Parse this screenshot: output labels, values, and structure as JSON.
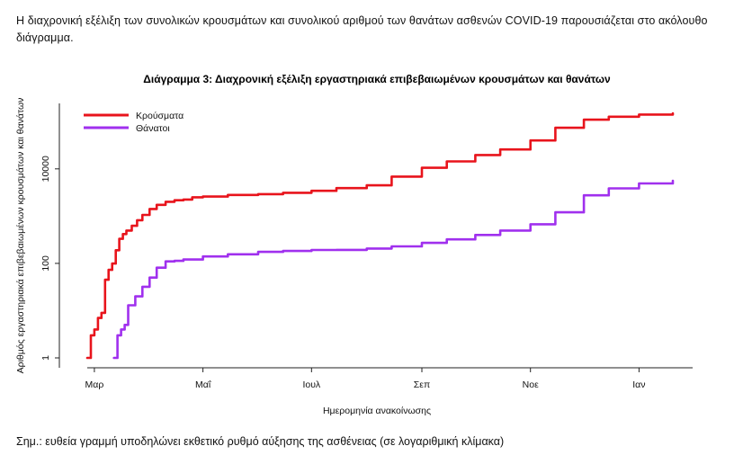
{
  "intro_text": "Η διαχρονική εξέλιξη των συνολικών κρουσμάτων και συνολικού αριθμού των θανάτων ασθενών COVID-19 παρουσιάζεται στο ακόλουθο διάγραμμα.",
  "footnote": "Σημ.: ευθεία γραμμή υποδηλώνει εκθετικό ρυθμό αύξησης της ασθένειας (σε λογαριθμική κλίμακα)",
  "chart_data": {
    "type": "line",
    "title": "Διάγραμμα 3: Διαχρονική εξέλιξη εργαστηριακά επιβεβαιωμένων κρουσμάτων και θανάτων",
    "xlabel": "Ημερομηνία ανακοίνωσης",
    "ylabel": "Αριθμός εργαστηριακά επιβεβαιωμένων κρουσμάτων και θανάτων",
    "y_scale": "log",
    "ylim": [
      1,
      200000
    ],
    "xlim": [
      "2020-02-26",
      "2021-01-23"
    ],
    "grid": false,
    "legend_position": "top-left",
    "x_ticks": [
      {
        "date": "2020-03-01",
        "label": "Μαρ"
      },
      {
        "date": "2020-05-01",
        "label": "Μαΐ"
      },
      {
        "date": "2020-07-01",
        "label": "Ιουλ"
      },
      {
        "date": "2020-09-01",
        "label": "Σεπ"
      },
      {
        "date": "2020-11-01",
        "label": "Νοε"
      },
      {
        "date": "2021-01-01",
        "label": "Ιαν"
      }
    ],
    "y_ticks": [
      {
        "value": 1,
        "label": "1"
      },
      {
        "value": 100,
        "label": "100"
      },
      {
        "value": 10000,
        "label": "10000"
      }
    ],
    "series": [
      {
        "name": "Κρούσματα",
        "color": "#e8141c",
        "points": [
          [
            "2020-02-26",
            1
          ],
          [
            "2020-02-28",
            3
          ],
          [
            "2020-03-01",
            4
          ],
          [
            "2020-03-03",
            7
          ],
          [
            "2020-03-05",
            9
          ],
          [
            "2020-03-07",
            45
          ],
          [
            "2020-03-09",
            73
          ],
          [
            "2020-03-11",
            99
          ],
          [
            "2020-03-13",
            190
          ],
          [
            "2020-03-15",
            331
          ],
          [
            "2020-03-17",
            418
          ],
          [
            "2020-03-19",
            495
          ],
          [
            "2020-03-22",
            624
          ],
          [
            "2020-03-25",
            821
          ],
          [
            "2020-03-28",
            1061
          ],
          [
            "2020-04-01",
            1415
          ],
          [
            "2020-04-05",
            1735
          ],
          [
            "2020-04-10",
            2011
          ],
          [
            "2020-04-15",
            2170
          ],
          [
            "2020-04-20",
            2245
          ],
          [
            "2020-04-25",
            2506
          ],
          [
            "2020-05-01",
            2591
          ],
          [
            "2020-05-15",
            2810
          ],
          [
            "2020-06-01",
            2918
          ],
          [
            "2020-06-15",
            3121
          ],
          [
            "2020-07-01",
            3432
          ],
          [
            "2020-07-15",
            3910
          ],
          [
            "2020-08-01",
            4477
          ],
          [
            "2020-08-15",
            6858
          ],
          [
            "2020-09-01",
            10524
          ],
          [
            "2020-09-15",
            14400
          ],
          [
            "2020-10-01",
            19613
          ],
          [
            "2020-10-15",
            25802
          ],
          [
            "2020-11-01",
            40000
          ],
          [
            "2020-11-15",
            74000
          ],
          [
            "2020-12-01",
            110000
          ],
          [
            "2020-12-15",
            127000
          ],
          [
            "2021-01-01",
            141000
          ],
          [
            "2021-01-20",
            150000
          ]
        ]
      },
      {
        "name": "Θάνατοι",
        "color": "#a030ee",
        "points": [
          [
            "2020-03-12",
            1
          ],
          [
            "2020-03-14",
            3
          ],
          [
            "2020-03-16",
            4
          ],
          [
            "2020-03-18",
            5
          ],
          [
            "2020-03-20",
            13
          ],
          [
            "2020-03-24",
            20
          ],
          [
            "2020-03-28",
            32
          ],
          [
            "2020-04-01",
            50
          ],
          [
            "2020-04-05",
            81
          ],
          [
            "2020-04-10",
            110
          ],
          [
            "2020-04-15",
            113
          ],
          [
            "2020-04-20",
            121
          ],
          [
            "2020-05-01",
            140
          ],
          [
            "2020-05-15",
            156
          ],
          [
            "2020-06-01",
            175
          ],
          [
            "2020-06-15",
            183
          ],
          [
            "2020-07-01",
            192
          ],
          [
            "2020-07-15",
            193
          ],
          [
            "2020-08-01",
            206
          ],
          [
            "2020-08-15",
            229
          ],
          [
            "2020-09-01",
            271
          ],
          [
            "2020-09-15",
            322
          ],
          [
            "2020-10-01",
            400
          ],
          [
            "2020-10-15",
            495
          ],
          [
            "2020-11-01",
            673
          ],
          [
            "2020-11-15",
            1205
          ],
          [
            "2020-12-01",
            2762
          ],
          [
            "2020-12-15",
            3870
          ],
          [
            "2021-01-01",
            4921
          ],
          [
            "2021-01-20",
            5612
          ]
        ]
      }
    ]
  }
}
